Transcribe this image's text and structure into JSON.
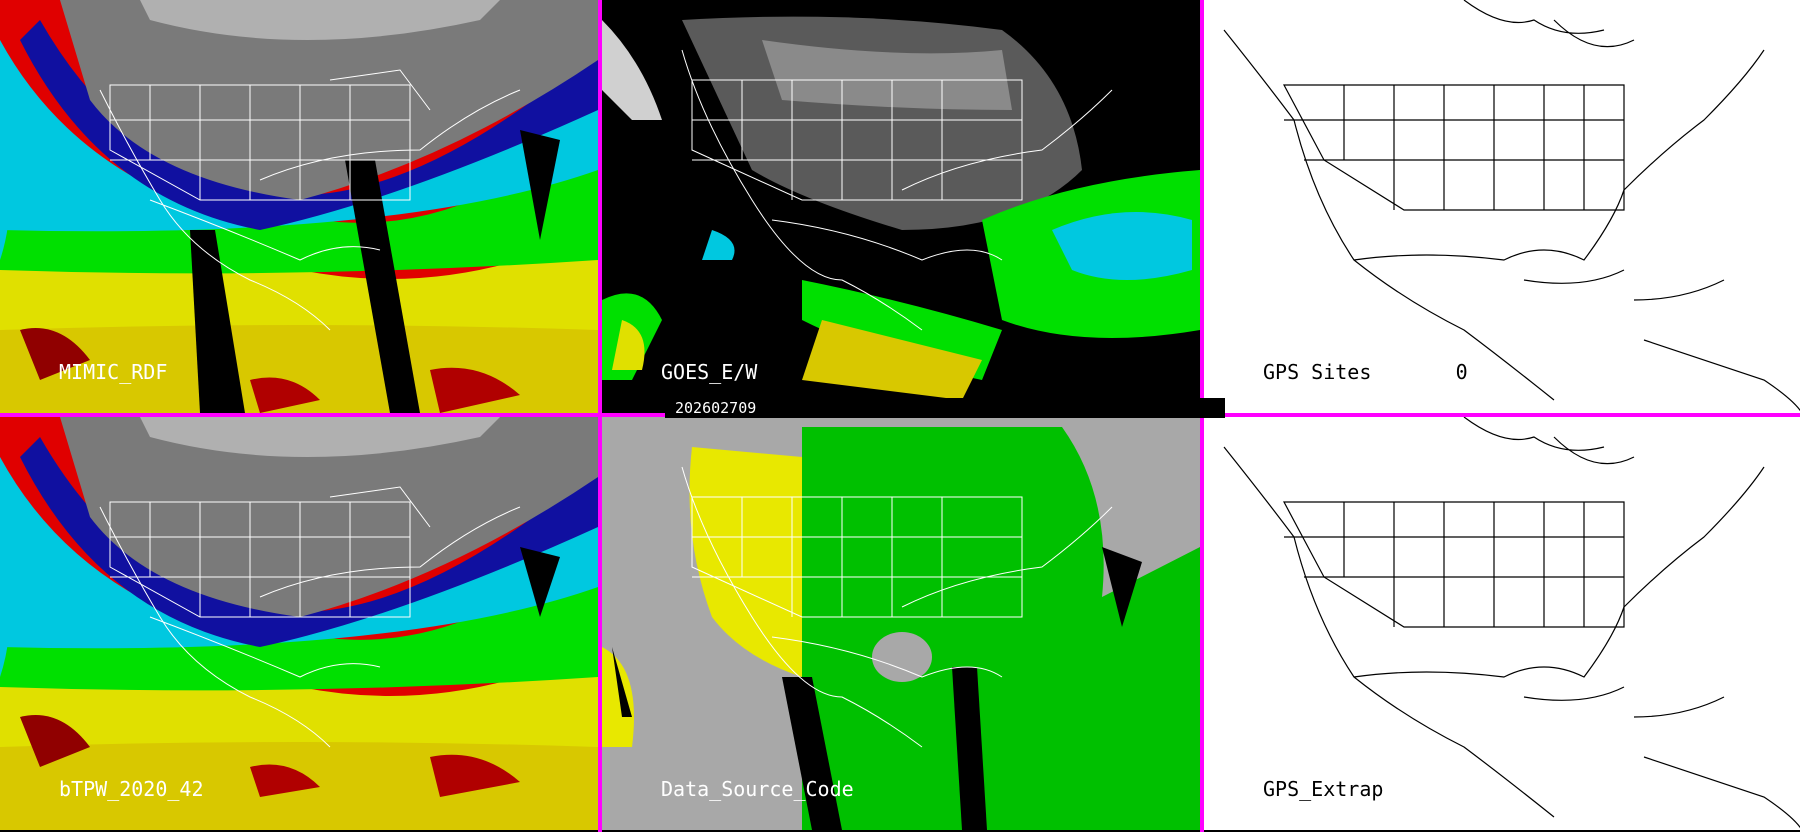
{
  "panels": [
    {
      "label": "MIMIC_RDF",
      "theme": "tpw"
    },
    {
      "label": "GOES_E/W",
      "theme": "goes"
    },
    {
      "label": "GPS Sites       0",
      "theme": "white"
    },
    {
      "label": "bTPW_2020_42",
      "theme": "tpw"
    },
    {
      "label": "Data_Source_Code",
      "theme": "source"
    },
    {
      "label": "GPS_Extrap",
      "theme": "white"
    }
  ],
  "timestamp": "202602709",
  "colors": {
    "divider": "#ff00ff",
    "tpw_scale": [
      "#3a3a3a",
      "#8a8a8a",
      "#1010a0",
      "#00c8e0",
      "#00e000",
      "#e0e000",
      "#e00000"
    ],
    "source_scale": [
      "#a8a8a8",
      "#e8e800",
      "#00c000"
    ]
  }
}
